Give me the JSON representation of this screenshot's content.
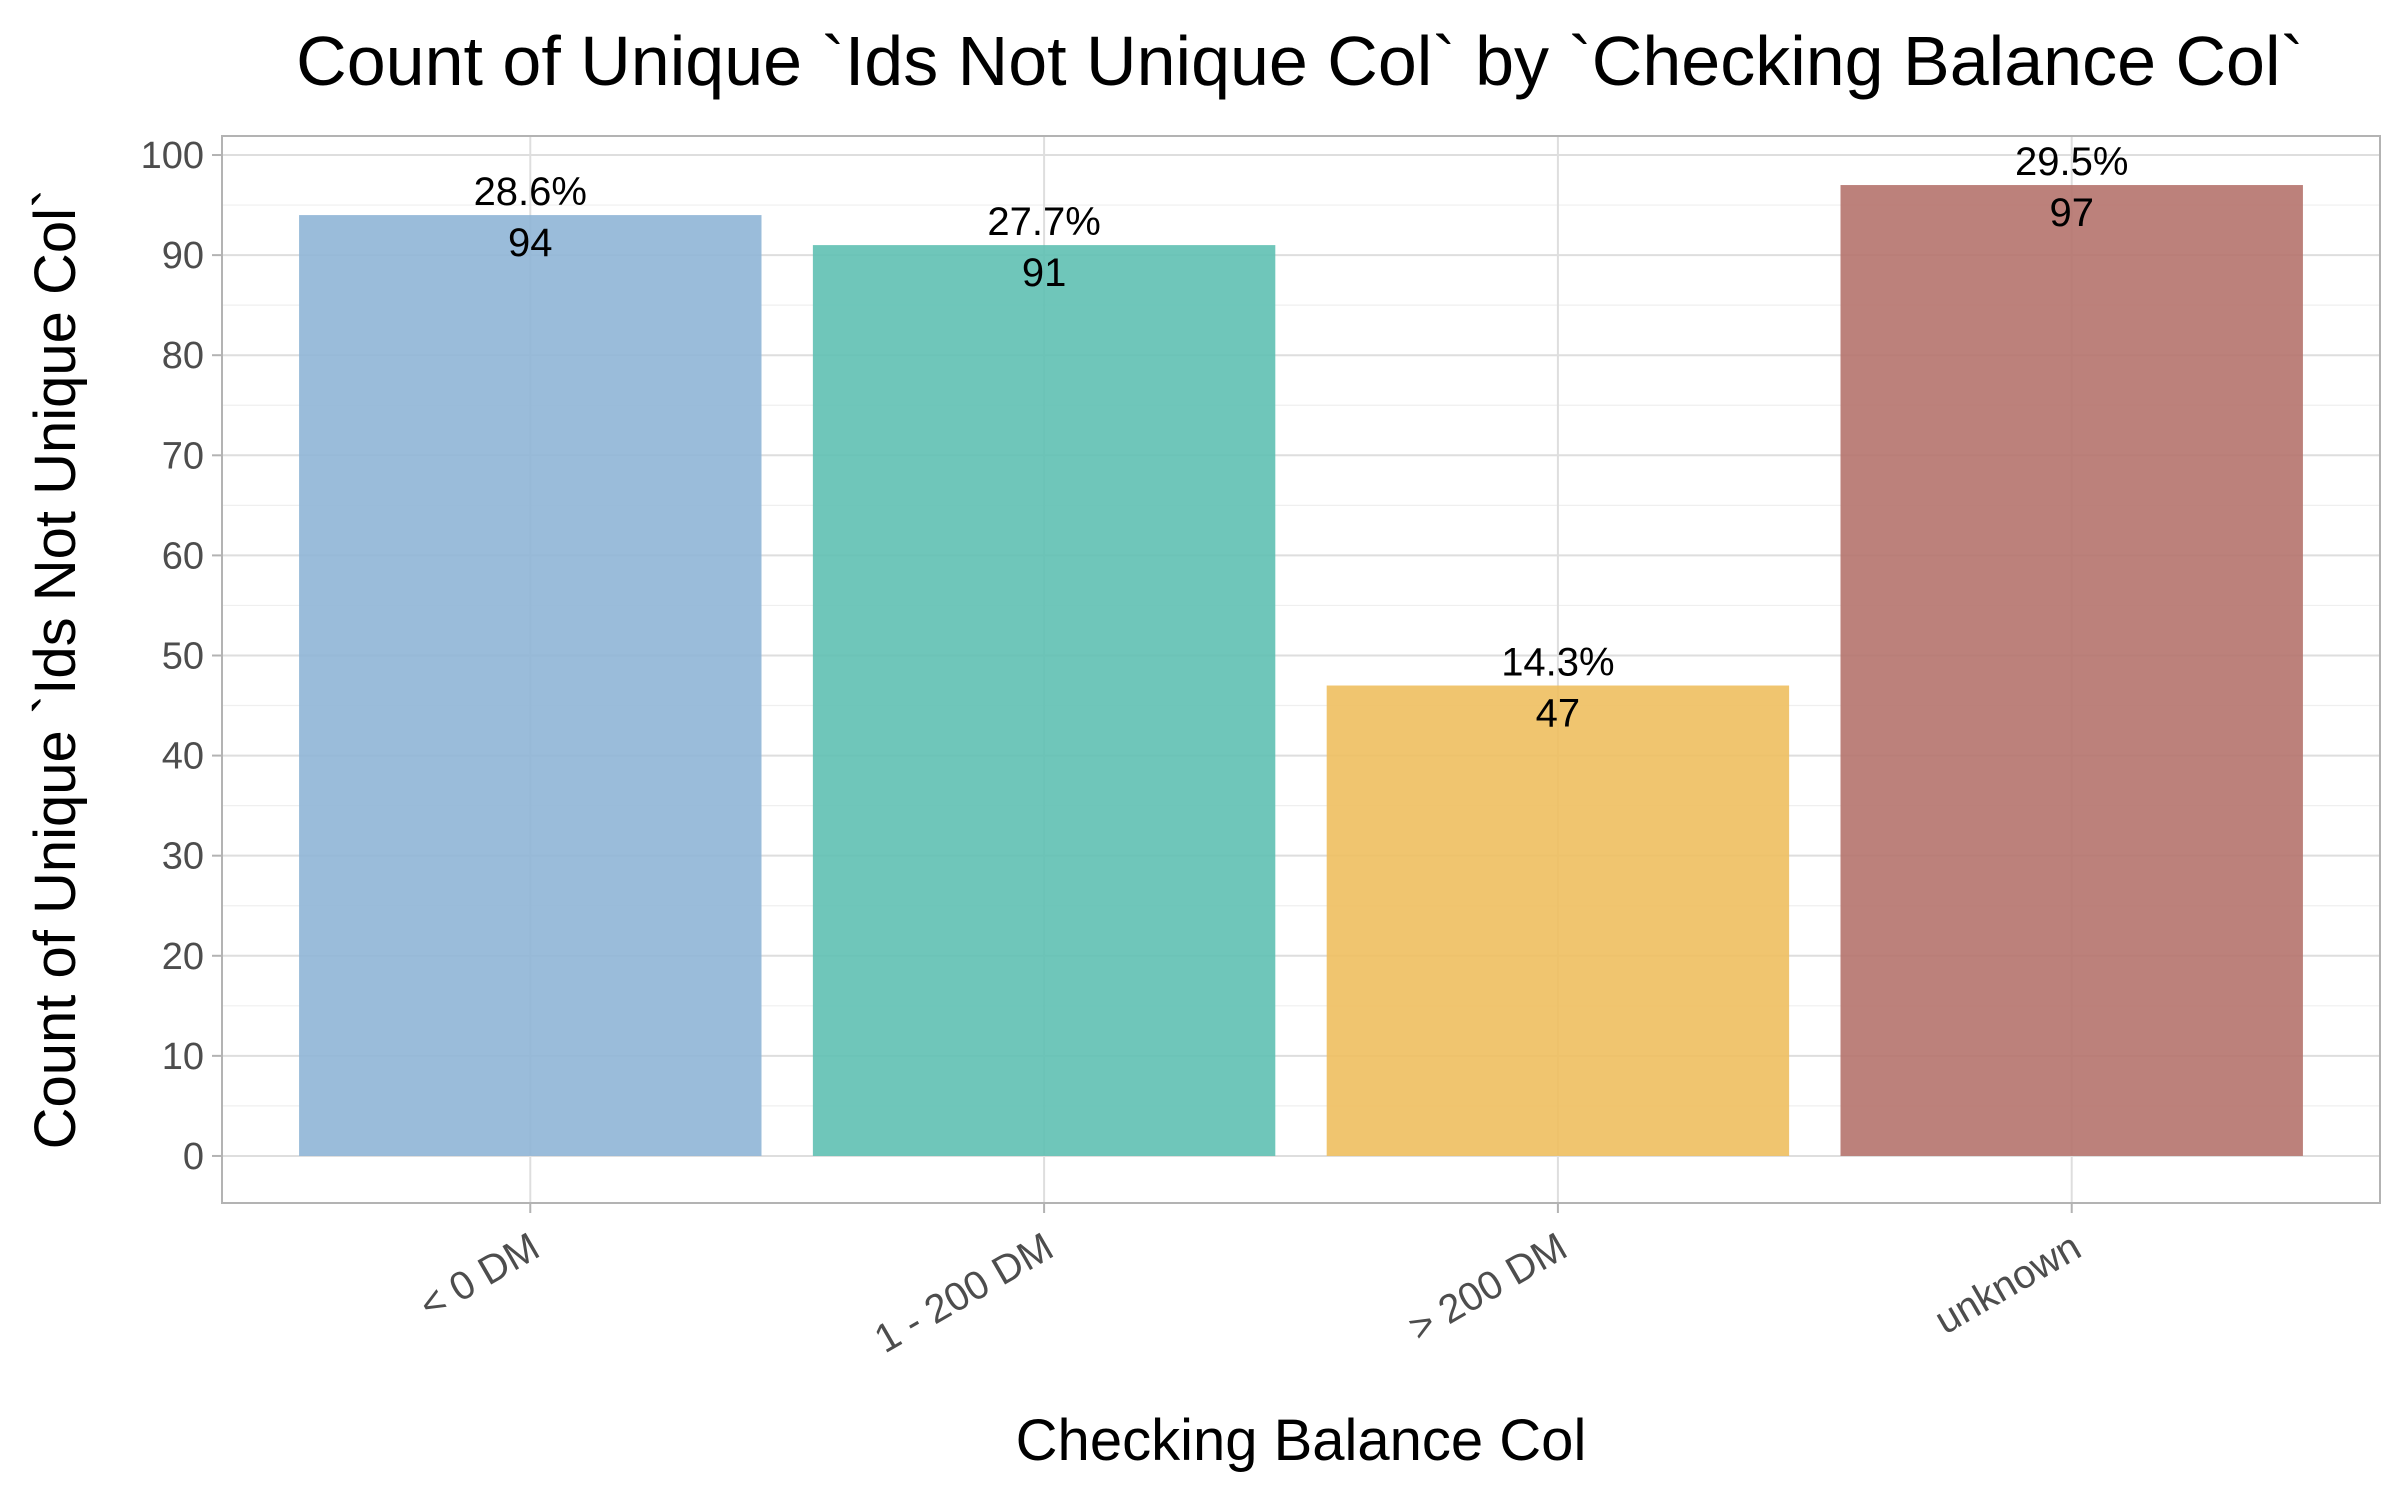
{
  "chart_data": {
    "type": "bar",
    "title": "Count of Unique `Ids Not Unique Col` by `Checking Balance Col`",
    "xlabel": "Checking Balance Col",
    "ylabel": "Count of Unique `Ids Not Unique Col`",
    "categories": [
      "< 0 DM",
      "1 - 200 DM",
      "> 200 DM",
      "unknown"
    ],
    "values": [
      94,
      91,
      47,
      97
    ],
    "percent_labels": [
      "28.6%",
      "27.7%",
      "14.3%",
      "29.5%"
    ],
    "value_labels": [
      "94",
      "91",
      "47",
      "97"
    ],
    "colors": [
      "#8fb5d6",
      "#5fc0b3",
      "#eebf5f",
      "#b5736d"
    ],
    "y_ticks": [
      "0",
      "10",
      "20",
      "30",
      "40",
      "50",
      "60",
      "70",
      "80",
      "90",
      "100"
    ],
    "ylim": [
      -4.7,
      101.9
    ],
    "grid": true,
    "legend": "none"
  }
}
